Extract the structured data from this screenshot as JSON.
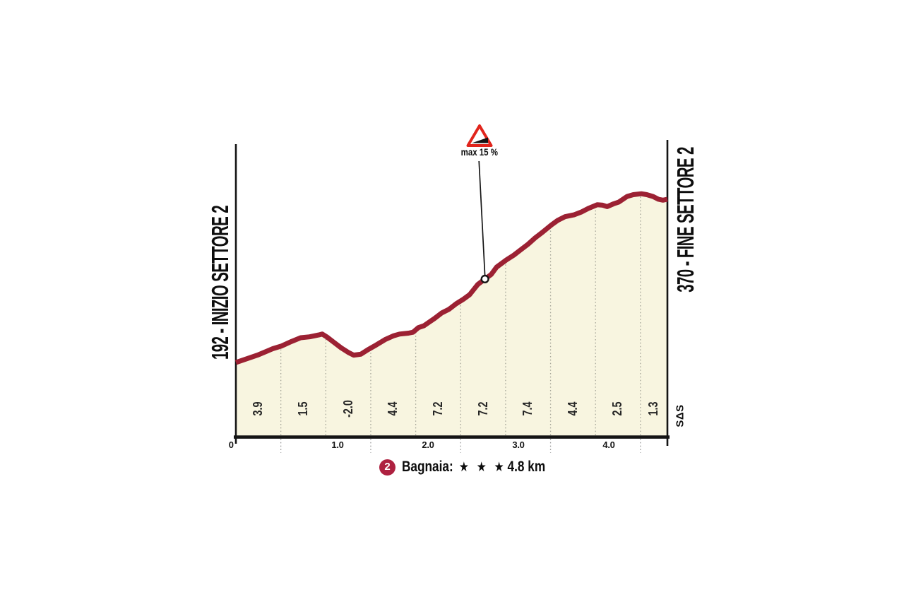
{
  "labels": {
    "start": "192 - INIZIO SETTORE 2",
    "end": "370 - FINE SETTORE 2"
  },
  "watermark": "SΔS",
  "caption": {
    "number": "2",
    "name": "Bagnaia:",
    "stars": "★ ★ ★",
    "length": "4.8 km"
  },
  "chart_data": {
    "type": "area",
    "title": "Bagnaia gravel sector elevation profile",
    "x_unit": "km",
    "xlim": [
      0,
      4.8
    ],
    "elevation_start_m": 192,
    "elevation_end_m": 370,
    "x_origin_label": "0",
    "x_ticks": [
      "1.0",
      "2.0",
      "3.0",
      "4.0"
    ],
    "segment_length_km": 0.5,
    "segment_gradients_pct": [
      "3.9",
      "1.5",
      "-2.0",
      "4.4",
      "7.2",
      "7.2",
      "7.4",
      "4.4",
      "2.5",
      "1.3"
    ],
    "marker": {
      "km": 2.77,
      "elevation_m": 283,
      "label": "max 15 %"
    },
    "grid": {
      "step_km": 0.5,
      "style": "dotted"
    },
    "colors": {
      "line": "#9c2133",
      "fill": "#f8f5e0",
      "badge": "#ae2140",
      "warning_red": "#e1251c",
      "grid": "#a6a699",
      "ink": "#141414"
    },
    "profile": [
      [
        0.0,
        192
      ],
      [
        0.24,
        200
      ],
      [
        0.41,
        207
      ],
      [
        0.51,
        210
      ],
      [
        0.62,
        215
      ],
      [
        0.72,
        219
      ],
      [
        0.82,
        220
      ],
      [
        0.92,
        222
      ],
      [
        0.96,
        223
      ],
      [
        1.01,
        220
      ],
      [
        1.09,
        214
      ],
      [
        1.17,
        208
      ],
      [
        1.25,
        203
      ],
      [
        1.31,
        200
      ],
      [
        1.39,
        201
      ],
      [
        1.47,
        206
      ],
      [
        1.56,
        211
      ],
      [
        1.66,
        217
      ],
      [
        1.75,
        221
      ],
      [
        1.82,
        223
      ],
      [
        1.92,
        224
      ],
      [
        1.97,
        225
      ],
      [
        2.03,
        230
      ],
      [
        2.09,
        232
      ],
      [
        2.15,
        236
      ],
      [
        2.21,
        240
      ],
      [
        2.29,
        246
      ],
      [
        2.37,
        250
      ],
      [
        2.45,
        256
      ],
      [
        2.53,
        261
      ],
      [
        2.6,
        266
      ],
      [
        2.69,
        277
      ],
      [
        2.77,
        283
      ],
      [
        2.84,
        288
      ],
      [
        2.9,
        296
      ],
      [
        3.01,
        304
      ],
      [
        3.09,
        309
      ],
      [
        3.17,
        315
      ],
      [
        3.25,
        321
      ],
      [
        3.33,
        328
      ],
      [
        3.41,
        334
      ],
      [
        3.51,
        342
      ],
      [
        3.58,
        347
      ],
      [
        3.66,
        351
      ],
      [
        3.76,
        353
      ],
      [
        3.84,
        356
      ],
      [
        3.92,
        360
      ],
      [
        4.02,
        364
      ],
      [
        4.08,
        363.5
      ],
      [
        4.13,
        362
      ],
      [
        4.2,
        365
      ],
      [
        4.26,
        367
      ],
      [
        4.35,
        373
      ],
      [
        4.42,
        375
      ],
      [
        4.51,
        376
      ],
      [
        4.57,
        375
      ],
      [
        4.64,
        373
      ],
      [
        4.7,
        370
      ],
      [
        4.75,
        369
      ],
      [
        4.8,
        370
      ]
    ]
  }
}
